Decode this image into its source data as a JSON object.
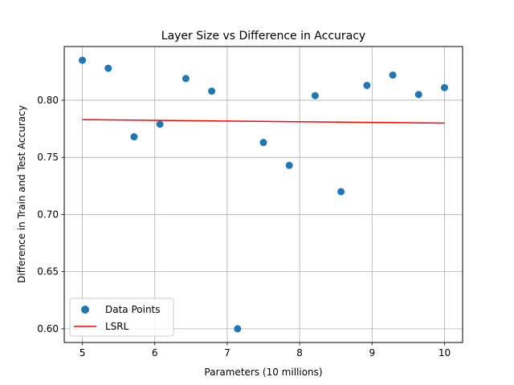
{
  "chart_data": {
    "type": "scatter",
    "title": "Layer Size vs Difference in Accuracy",
    "xlabel": "Parameters (10 millions)",
    "ylabel": "Difference in Train and Test Accuracy",
    "xlim": [
      4.75,
      10.25
    ],
    "ylim": [
      0.588,
      0.847
    ],
    "xticks": [
      "5",
      "6",
      "7",
      "8",
      "9",
      "10"
    ],
    "yticks": [
      "0.60",
      "0.65",
      "0.70",
      "0.75",
      "0.80"
    ],
    "grid": true,
    "legend_position": "lower-left",
    "series": [
      {
        "name": "Data Points",
        "kind": "scatter",
        "color": "#1f77b4",
        "x": [
          5.0,
          5.357,
          5.714,
          6.071,
          6.429,
          6.786,
          7.143,
          7.5,
          7.857,
          8.214,
          8.571,
          8.929,
          9.286,
          9.643,
          10.0
        ],
        "y": [
          0.835,
          0.828,
          0.768,
          0.779,
          0.819,
          0.808,
          0.6,
          0.763,
          0.743,
          0.804,
          0.72,
          0.813,
          0.822,
          0.805,
          0.811
        ]
      },
      {
        "name": "LSRL",
        "kind": "line",
        "color": "#ff0000",
        "x": [
          5.0,
          10.0
        ],
        "y": [
          0.783,
          0.78
        ]
      }
    ]
  }
}
